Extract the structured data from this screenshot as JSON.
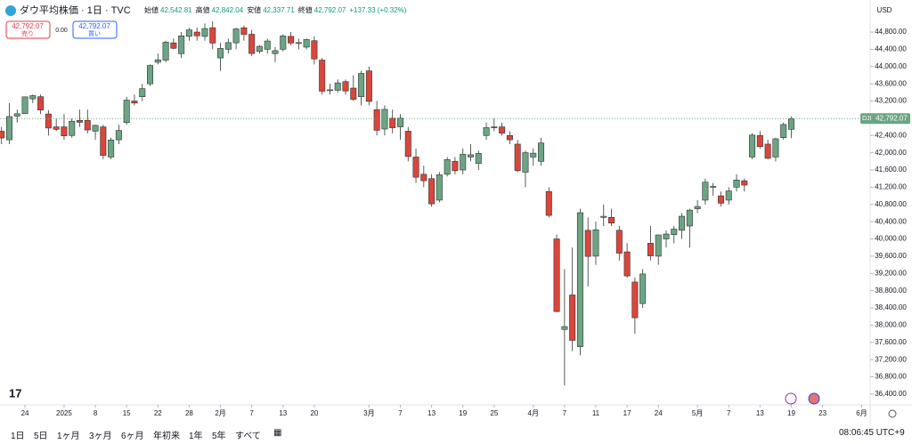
{
  "header": {
    "symbol": "ダウ平均株価 · 1日 · TVC",
    "open_label": "始値",
    "open": "42,542.81",
    "high_label": "高値",
    "high": "42,842.04",
    "low_label": "安値",
    "low": "42,337.71",
    "close_label": "終値",
    "close": "42,792.07",
    "change": "+137.33 (+0.32%)",
    "sell_price": "42,792.07",
    "sell_label": "売り",
    "spread": "0.00",
    "buy_price": "42,792.07",
    "buy_label": "買い"
  },
  "currency": "USD",
  "last_price_tag": "DJI",
  "last_price_label": "42,792.07",
  "toolbar": {
    "ranges": [
      "1日",
      "5日",
      "1ヶ月",
      "3ヶ月",
      "6ヶ月",
      "年初来",
      "1年",
      "5年",
      "すべて"
    ],
    "time": "08:06:45 UTC+9"
  },
  "chart_data": {
    "type": "candlestick",
    "up_color": "#6ba583",
    "down_color": "#d9463b",
    "ylim": [
      36150,
      45090
    ],
    "yticks": [
      {
        "value": 36400,
        "label": "36,400.00"
      },
      {
        "value": 36800,
        "label": "36,800.00"
      },
      {
        "value": 37200,
        "label": "37,200.00"
      },
      {
        "value": 37600,
        "label": "37,600.00"
      },
      {
        "value": 38000,
        "label": "38,000.00"
      },
      {
        "value": 38400,
        "label": "38,400.00"
      },
      {
        "value": 38800,
        "label": "38,800.00"
      },
      {
        "value": 39200,
        "label": "39,200.00"
      },
      {
        "value": 39600,
        "label": "39,600.00"
      },
      {
        "value": 40000,
        "label": "40,000.00"
      },
      {
        "value": 40400,
        "label": "40,400.00"
      },
      {
        "value": 40800,
        "label": "40,800.00"
      },
      {
        "value": 41200,
        "label": "41,200.00"
      },
      {
        "value": 41600,
        "label": "41,600.00"
      },
      {
        "value": 42000,
        "label": "42,000.00"
      },
      {
        "value": 42400,
        "label": "42,400.00"
      },
      {
        "value": 42800,
        "label": "42,800.00"
      },
      {
        "value": 43200,
        "label": "43,200.00"
      },
      {
        "value": 43600,
        "label": "43,600.00"
      },
      {
        "value": 44000,
        "label": "44,000.00"
      },
      {
        "value": 44400,
        "label": "44,400.00"
      },
      {
        "value": 44800,
        "label": "44,800.00"
      }
    ],
    "xticks": [
      {
        "value": 3,
        "label": "24"
      },
      {
        "value": 8,
        "label": "2025"
      },
      {
        "value": 12,
        "label": "8"
      },
      {
        "value": 16,
        "label": "15"
      },
      {
        "value": 20,
        "label": "22"
      },
      {
        "value": 24,
        "label": "28"
      },
      {
        "value": 28,
        "label": "2月"
      },
      {
        "value": 32,
        "label": "7"
      },
      {
        "value": 36,
        "label": "13"
      },
      {
        "value": 40,
        "label": "20"
      },
      {
        "value": 47,
        "label": "3月"
      },
      {
        "value": 51,
        "label": "7"
      },
      {
        "value": 55,
        "label": "13"
      },
      {
        "value": 59,
        "label": "19"
      },
      {
        "value": 63,
        "label": "25"
      },
      {
        "value": 68,
        "label": "4月"
      },
      {
        "value": 72,
        "label": "7"
      },
      {
        "value": 76,
        "label": "11"
      },
      {
        "value": 80,
        "label": "17"
      },
      {
        "value": 84,
        "label": "24"
      },
      {
        "value": 89,
        "label": "5月"
      },
      {
        "value": 93,
        "label": "7"
      },
      {
        "value": 97,
        "label": "13"
      },
      {
        "value": 101,
        "label": "19"
      },
      {
        "value": 105,
        "label": "23"
      },
      {
        "value": 110,
        "label": "6月"
      }
    ],
    "candles": [
      [
        42500,
        42600,
        42200,
        42342
      ],
      [
        42300,
        43150,
        42200,
        42840
      ],
      [
        42850,
        43000,
        42700,
        42906
      ],
      [
        42906,
        43300,
        42900,
        43297
      ],
      [
        43250,
        43350,
        43150,
        43325
      ],
      [
        43300,
        43350,
        42900,
        42992
      ],
      [
        42900,
        42990,
        42400,
        42573
      ],
      [
        42600,
        42800,
        42500,
        42544
      ],
      [
        42600,
        42900,
        42300,
        42392
      ],
      [
        42400,
        42800,
        42350,
        42732
      ],
      [
        42750,
        43000,
        42600,
        42706
      ],
      [
        42750,
        43000,
        42450,
        42528
      ],
      [
        42500,
        42650,
        42300,
        42635
      ],
      [
        42600,
        42650,
        41850,
        41938
      ],
      [
        41900,
        42350,
        41850,
        42297
      ],
      [
        42300,
        42650,
        42200,
        42518
      ],
      [
        42700,
        43300,
        42650,
        43221
      ],
      [
        43200,
        43350,
        43100,
        43153
      ],
      [
        43300,
        43600,
        43200,
        43488
      ],
      [
        43600,
        44050,
        43550,
        44025
      ],
      [
        44100,
        44300,
        44050,
        44156
      ],
      [
        44150,
        44600,
        44100,
        44565
      ],
      [
        44550,
        44650,
        44400,
        44424
      ],
      [
        44300,
        44800,
        44200,
        44713
      ],
      [
        44700,
        44900,
        44600,
        44850
      ],
      [
        44800,
        44900,
        44600,
        44714
      ],
      [
        44700,
        45000,
        44600,
        44882
      ],
      [
        44900,
        45050,
        44400,
        44545
      ],
      [
        44200,
        44550,
        43900,
        44421
      ],
      [
        44400,
        44650,
        44300,
        44556
      ],
      [
        44550,
        44900,
        44400,
        44873
      ],
      [
        44900,
        44950,
        44600,
        44747
      ],
      [
        44750,
        44850,
        44250,
        44303
      ],
      [
        44350,
        44500,
        44300,
        44470
      ],
      [
        44400,
        44650,
        44300,
        44593
      ],
      [
        44300,
        44450,
        44100,
        44368
      ],
      [
        44400,
        44750,
        44350,
        44711
      ],
      [
        44700,
        44800,
        44500,
        44546
      ],
      [
        44550,
        44650,
        44400,
        44556
      ],
      [
        44450,
        44650,
        44400,
        44627
      ],
      [
        44600,
        44700,
        44050,
        44177
      ],
      [
        44150,
        44200,
        43350,
        43428
      ],
      [
        43450,
        43600,
        43350,
        43461
      ],
      [
        43450,
        43700,
        43400,
        43621
      ],
      [
        43650,
        43700,
        43350,
        43433
      ],
      [
        43500,
        43800,
        43200,
        43240
      ],
      [
        43300,
        43900,
        43100,
        43841
      ],
      [
        43900,
        44000,
        43100,
        43191
      ],
      [
        43000,
        43200,
        42400,
        42521
      ],
      [
        42550,
        43100,
        42400,
        43006
      ],
      [
        42800,
        43000,
        42450,
        42579
      ],
      [
        42600,
        42900,
        42300,
        42802
      ],
      [
        42500,
        42600,
        41800,
        41912
      ],
      [
        41900,
        42100,
        41300,
        41433
      ],
      [
        41500,
        41700,
        41200,
        41350
      ],
      [
        41400,
        41500,
        40750,
        40814
      ],
      [
        40900,
        41550,
        40850,
        41488
      ],
      [
        41500,
        41900,
        41450,
        41841
      ],
      [
        41800,
        41900,
        41500,
        41582
      ],
      [
        41600,
        42100,
        41500,
        41965
      ],
      [
        41900,
        42200,
        41800,
        41953
      ],
      [
        41750,
        42050,
        41600,
        41985
      ],
      [
        42400,
        42700,
        42300,
        42583
      ],
      [
        42600,
        42800,
        42500,
        42588
      ],
      [
        42600,
        42700,
        42400,
        42455
      ],
      [
        42400,
        42500,
        42200,
        42300
      ],
      [
        42200,
        42300,
        41550,
        41584
      ],
      [
        41550,
        42050,
        41200,
        42002
      ],
      [
        41900,
        42100,
        41700,
        41990
      ],
      [
        41800,
        42350,
        41700,
        42226
      ],
      [
        41100,
        41200,
        40500,
        40546
      ],
      [
        40000,
        40100,
        38300,
        38315
      ],
      [
        37900,
        39300,
        36600,
        37966
      ],
      [
        38700,
        39800,
        37400,
        37646
      ],
      [
        37500,
        40700,
        37300,
        40609
      ],
      [
        40200,
        40500,
        38900,
        39594
      ],
      [
        39600,
        40400,
        39400,
        40213
      ],
      [
        40500,
        40800,
        40300,
        40525
      ],
      [
        40500,
        40700,
        40300,
        40368
      ],
      [
        40200,
        40300,
        39500,
        39669
      ],
      [
        39700,
        39900,
        39100,
        39142
      ],
      [
        39000,
        39100,
        37800,
        38171
      ],
      [
        38500,
        39300,
        38400,
        39187
      ],
      [
        39900,
        40300,
        39500,
        39607
      ],
      [
        39600,
        40100,
        39400,
        40093
      ],
      [
        40000,
        40200,
        39800,
        40114
      ],
      [
        40100,
        40300,
        39900,
        40228
      ],
      [
        40200,
        40600,
        40000,
        40527
      ],
      [
        40300,
        40700,
        39800,
        40669
      ],
      [
        40700,
        40900,
        40600,
        40753
      ],
      [
        40900,
        41400,
        40800,
        41317
      ],
      [
        41200,
        41300,
        41000,
        41219
      ],
      [
        41000,
        41100,
        40750,
        40829
      ],
      [
        40900,
        41200,
        40800,
        41114
      ],
      [
        41200,
        41500,
        41100,
        41368
      ],
      [
        41350,
        41400,
        41100,
        41249
      ],
      [
        41900,
        42450,
        41850,
        42410
      ],
      [
        42400,
        42500,
        42100,
        42141
      ],
      [
        42200,
        42300,
        41850,
        41873
      ],
      [
        41900,
        42350,
        41800,
        42323
      ],
      [
        42350,
        42700,
        42300,
        42655
      ],
      [
        42543,
        42842,
        42338,
        42792
      ]
    ]
  }
}
